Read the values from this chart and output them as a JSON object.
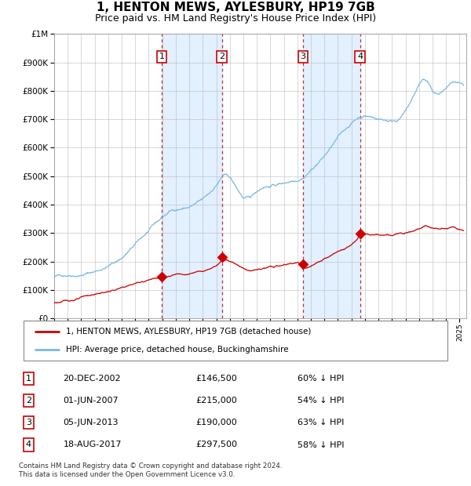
{
  "title": "1, HENTON MEWS, AYLESBURY, HP19 7GB",
  "subtitle": "Price paid vs. HM Land Registry's House Price Index (HPI)",
  "legend_line1": "1, HENTON MEWS, AYLESBURY, HP19 7GB (detached house)",
  "legend_line2": "HPI: Average price, detached house, Buckinghamshire",
  "footer1": "Contains HM Land Registry data © Crown copyright and database right 2024.",
  "footer2": "This data is licensed under the Open Government Licence v3.0.",
  "sales": [
    {
      "num": 1,
      "date_str": "20-DEC-2002",
      "price": 146500,
      "pct": "60% ↓ HPI",
      "year": 2002.97
    },
    {
      "num": 2,
      "date_str": "01-JUN-2007",
      "price": 215000,
      "pct": "54% ↓ HPI",
      "year": 2007.41
    },
    {
      "num": 3,
      "date_str": "05-JUN-2013",
      "price": 190000,
      "pct": "63% ↓ HPI",
      "year": 2013.42
    },
    {
      "num": 4,
      "date_str": "18-AUG-2017",
      "price": 297500,
      "pct": "58% ↓ HPI",
      "year": 2017.63
    }
  ],
  "hpi_color": "#7ab8e8",
  "sale_color": "#cc0000",
  "vline_color": "#cc0000",
  "bg_shade_color": "#ddeeff",
  "ylim": [
    0,
    1000000
  ],
  "xlim_start": 1995.0,
  "xlim_end": 2025.5,
  "title_fontsize": 11,
  "subtitle_fontsize": 9
}
